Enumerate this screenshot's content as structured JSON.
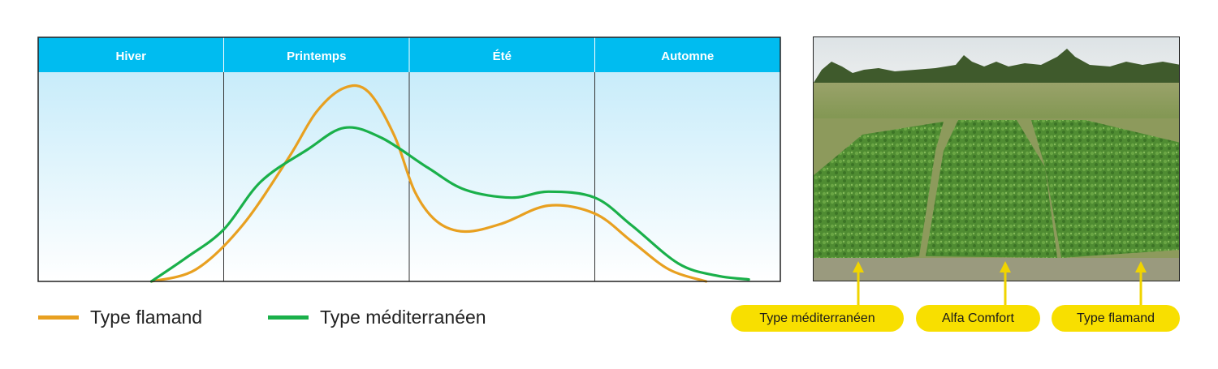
{
  "colors": {
    "header": "#00bcf0",
    "flamand": "#e8a020",
    "mediterraneen": "#1ab04a",
    "callout": "#f8df00",
    "arrow": "#f0d400"
  },
  "chart_data": {
    "type": "line",
    "title": "",
    "xlabel": "",
    "ylabel": "",
    "categories": [
      "Hiver",
      "Printemps",
      "Été",
      "Automne"
    ],
    "x_range": [
      0,
      4
    ],
    "y_range": [
      0,
      100
    ],
    "series": [
      {
        "name": "Type flamand",
        "color": "#e8a020",
        "points": [
          [
            0.61,
            0
          ],
          [
            0.85,
            6
          ],
          [
            1.1,
            28
          ],
          [
            1.35,
            62
          ],
          [
            1.5,
            85
          ],
          [
            1.65,
            97
          ],
          [
            1.78,
            95
          ],
          [
            1.92,
            73
          ],
          [
            2.03,
            45
          ],
          [
            2.15,
            30
          ],
          [
            2.3,
            25
          ],
          [
            2.5,
            29
          ],
          [
            2.75,
            38
          ],
          [
            3.0,
            34
          ],
          [
            3.2,
            20
          ],
          [
            3.4,
            6
          ],
          [
            3.6,
            0
          ]
        ]
      },
      {
        "name": "Type méditerranéen",
        "color": "#1ab04a",
        "points": [
          [
            0.61,
            0
          ],
          [
            0.8,
            12
          ],
          [
            1.0,
            26
          ],
          [
            1.2,
            50
          ],
          [
            1.45,
            66
          ],
          [
            1.65,
            77
          ],
          [
            1.85,
            72
          ],
          [
            2.1,
            57
          ],
          [
            2.3,
            46
          ],
          [
            2.55,
            42
          ],
          [
            2.75,
            45
          ],
          [
            3.0,
            42
          ],
          [
            3.2,
            28
          ],
          [
            3.45,
            9
          ],
          [
            3.65,
            3
          ],
          [
            3.83,
            1
          ]
        ]
      }
    ],
    "grid": "vertical season dividers",
    "legend_position": "bottom-left"
  },
  "legend": {
    "flamand": "Type flamand",
    "mediterraneen": "Type méditerranéen"
  },
  "photo": {
    "description_icon": "alfalfa-field-photo"
  },
  "callouts": [
    "Type méditerranéen",
    "Alfa Comfort",
    "Type flamand"
  ]
}
